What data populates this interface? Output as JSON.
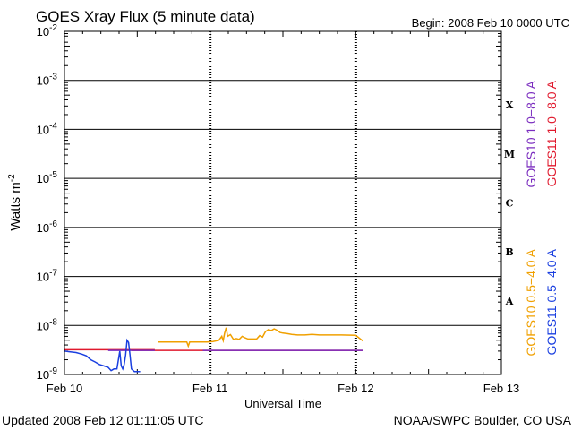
{
  "chart_data": {
    "type": "line",
    "title": "GOES Xray Flux (5 minute data)",
    "begin_text": "Begin:  2008 Feb 10 0000 UTC",
    "xlabel": "Universal Time",
    "ylabel": "Watts m",
    "ylabel_exp": "-2",
    "x_ticks": [
      "Feb 10",
      "Feb 11",
      "Feb 12",
      "Feb 13"
    ],
    "x_unit": "days since Feb 10 0000 UTC",
    "xlim": [
      0,
      3
    ],
    "y_scale": "log",
    "ylim": [
      1e-09,
      0.01
    ],
    "y_tick_exponents": [
      -2,
      -3,
      -4,
      -5,
      -6,
      -7,
      -8,
      -9
    ],
    "flare_classes": [
      "X",
      "M",
      "C",
      "B",
      "A"
    ],
    "legend_right": [
      {
        "label": "GOES10 1.0−8.0 A",
        "color": "#7a2cbf"
      },
      {
        "label": "GOES11 1.0−8.0 A",
        "color": "#e0192d"
      },
      {
        "label": "GOES10 0.5−4.0 A",
        "color": "#f0a000"
      },
      {
        "label": "GOES11 0.5−4.0 A",
        "color": "#1a3fe0"
      }
    ],
    "series": [
      {
        "name": "GOES11 1.0−8.0 A",
        "color": "#e0192d",
        "segments": [
          [
            [
              0.0,
              3.2e-09
            ],
            [
              0.62,
              3.2e-09
            ]
          ],
          [
            [
              0.46,
              3.1e-09
            ],
            [
              1.02,
              3.1e-09
            ],
            [
              1.5,
              3.1e-09
            ],
            [
              2.05,
              3.1e-09
            ]
          ]
        ]
      },
      {
        "name": "GOES10 1.0−8.0 A",
        "color": "#7a2cbf",
        "segments": [
          [
            [
              0.3,
              3.1e-09
            ],
            [
              0.62,
              3.1e-09
            ]
          ],
          [
            [
              0.95,
              3.1e-09
            ],
            [
              2.05,
              3.1e-09
            ]
          ]
        ]
      },
      {
        "name": "GOES11 0.5−4.0 A",
        "color": "#1a3fe0",
        "segments": [
          [
            [
              0.0,
              3e-09
            ],
            [
              0.04,
              2.9e-09
            ],
            [
              0.08,
              2.8e-09
            ],
            [
              0.12,
              2.6e-09
            ],
            [
              0.15,
              2.4e-09
            ],
            [
              0.18,
              2e-09
            ],
            [
              0.21,
              1.8e-09
            ],
            [
              0.24,
              1.6e-09
            ],
            [
              0.27,
              1.5e-09
            ],
            [
              0.3,
              1.4e-09
            ],
            [
              0.32,
              1.2e-09
            ],
            [
              0.34,
              1.3e-09
            ],
            [
              0.36,
              1.3e-09
            ],
            [
              0.38,
              3e-09
            ],
            [
              0.39,
              1.5e-09
            ],
            [
              0.4,
              1.3e-09
            ],
            [
              0.41,
              1.6e-09
            ],
            [
              0.42,
              2.5e-09
            ],
            [
              0.43,
              5e-09
            ],
            [
              0.44,
              4.5e-09
            ],
            [
              0.45,
              2.5e-09
            ],
            [
              0.46,
              1.3e-09
            ],
            [
              0.48,
              1.15e-09
            ],
            [
              0.52,
              1.15e-09
            ]
          ]
        ]
      },
      {
        "name": "GOES10 0.5−4.0 A",
        "color": "#f0a000",
        "segments": [
          [
            [
              0.64,
              4.6e-09
            ],
            [
              0.7,
              4.6e-09
            ],
            [
              0.78,
              4.6e-09
            ],
            [
              0.84,
              4.6e-09
            ],
            [
              0.85,
              3.8e-09
            ],
            [
              0.86,
              4.6e-09
            ],
            [
              0.98,
              4.6e-09
            ],
            [
              1.02,
              4.7e-09
            ],
            [
              1.06,
              5e-09
            ],
            [
              1.08,
              6e-09
            ],
            [
              1.09,
              4.9e-09
            ],
            [
              1.1,
              7e-09
            ],
            [
              1.11,
              9e-09
            ],
            [
              1.12,
              6e-09
            ],
            [
              1.14,
              6.5e-09
            ],
            [
              1.16,
              5.2e-09
            ],
            [
              1.18,
              5.4e-09
            ],
            [
              1.2,
              5.2e-09
            ],
            [
              1.22,
              6e-09
            ],
            [
              1.24,
              5.6e-09
            ],
            [
              1.26,
              5.3e-09
            ],
            [
              1.28,
              5.3e-09
            ],
            [
              1.32,
              5.3e-09
            ],
            [
              1.34,
              6.2e-09
            ],
            [
              1.36,
              5.8e-09
            ],
            [
              1.38,
              7.5e-09
            ],
            [
              1.4,
              8.2e-09
            ],
            [
              1.42,
              7.9e-09
            ],
            [
              1.44,
              8.5e-09
            ],
            [
              1.46,
              8e-09
            ],
            [
              1.48,
              7.2e-09
            ],
            [
              1.5,
              7e-09
            ],
            [
              1.53,
              6.8e-09
            ],
            [
              1.56,
              6.6e-09
            ],
            [
              1.6,
              6.4e-09
            ],
            [
              1.65,
              6.4e-09
            ],
            [
              1.7,
              6.6e-09
            ],
            [
              1.75,
              6.4e-09
            ],
            [
              1.8,
              6.4e-09
            ],
            [
              1.9,
              6.4e-09
            ],
            [
              2.0,
              6.3e-09
            ],
            [
              2.05,
              4.8e-09
            ]
          ]
        ]
      }
    ]
  },
  "footer": {
    "updated": "Updated 2008 Feb 12 01:11:05 UTC",
    "source": "NOAA/SWPC Boulder, CO USA"
  }
}
